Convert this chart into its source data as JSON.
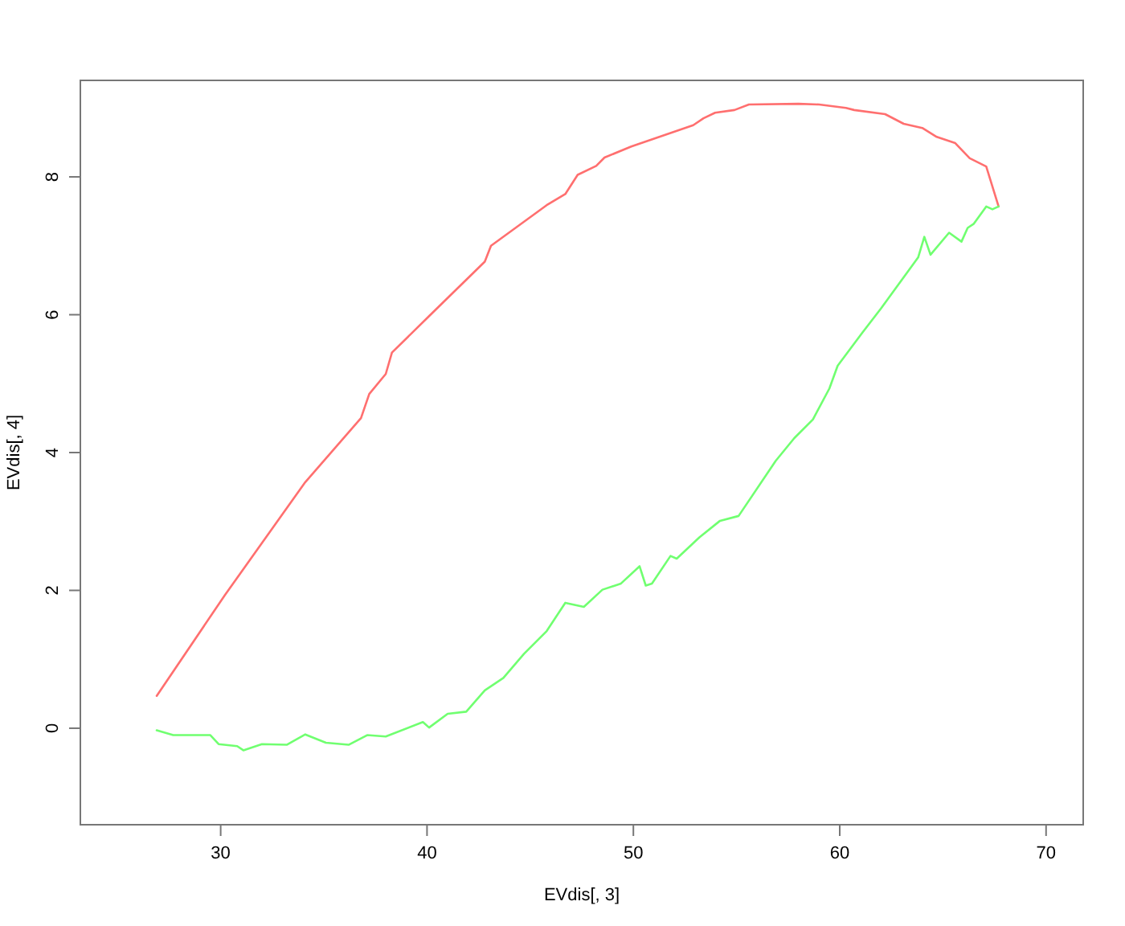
{
  "chart_data": {
    "type": "line",
    "xlabel": "EVdis[, 3]",
    "ylabel": "EVdis[, 4]",
    "xlim": [
      23.2,
      71.8
    ],
    "ylim": [
      -1.4,
      9.4
    ],
    "xticks": [
      30,
      40,
      50,
      60,
      70
    ],
    "yticks": [
      0,
      2,
      4,
      6,
      8
    ],
    "series": [
      {
        "color": "#ff6f6f",
        "x": [
          26.9,
          30.2,
          34.1,
          36.8,
          37.2,
          38.0,
          38.3,
          40.1,
          42.8,
          43.1,
          45.8,
          46.7,
          47.3,
          48.2,
          48.6,
          49.9,
          52.9,
          53.4,
          53.96,
          54.9,
          55.6,
          58.0,
          59.0,
          60.3,
          60.7,
          62.2,
          63.1,
          64.0,
          64.7,
          65.6,
          66.3,
          67.1,
          67.7
        ],
        "values": [
          0.47,
          1.93,
          3.57,
          4.5,
          4.85,
          5.14,
          5.45,
          5.98,
          6.77,
          7.0,
          7.59,
          7.75,
          8.03,
          8.16,
          8.28,
          8.44,
          8.75,
          8.85,
          8.93,
          8.97,
          9.05,
          9.06,
          9.05,
          9.0,
          8.97,
          8.91,
          8.77,
          8.71,
          8.58,
          8.49,
          8.27,
          8.15,
          7.57
        ]
      },
      {
        "color": "#70ff70",
        "x": [
          26.9,
          27.7,
          29.5,
          29.9,
          30.8,
          31.1,
          32.0,
          33.2,
          34.1,
          35.1,
          36.2,
          37.1,
          38.0,
          39.8,
          40.1,
          41.0,
          41.9,
          42.8,
          43.7,
          44.7,
          45.8,
          46.7,
          47.6,
          48.5,
          49.4,
          50.3,
          50.6,
          50.9,
          51.8,
          52.1,
          53.2,
          54.2,
          55.1,
          56.9,
          57.8,
          58.7,
          59.5,
          59.9,
          61.1,
          62.0,
          63.8,
          64.1,
          64.4,
          65.3,
          65.9,
          66.2,
          66.5,
          67.1,
          67.4,
          67.7
        ],
        "values": [
          -0.03,
          -0.1,
          -0.1,
          -0.23,
          -0.26,
          -0.32,
          -0.23,
          -0.24,
          -0.09,
          -0.21,
          -0.24,
          -0.1,
          -0.12,
          0.09,
          0.01,
          0.21,
          0.24,
          0.55,
          0.73,
          1.08,
          1.41,
          1.82,
          1.76,
          2.01,
          2.1,
          2.35,
          2.07,
          2.1,
          2.5,
          2.46,
          2.77,
          3.01,
          3.08,
          3.88,
          4.21,
          4.48,
          4.93,
          5.26,
          5.74,
          6.09,
          6.83,
          7.13,
          6.87,
          7.19,
          7.06,
          7.26,
          7.32,
          7.57,
          7.53,
          7.57
        ]
      }
    ]
  }
}
